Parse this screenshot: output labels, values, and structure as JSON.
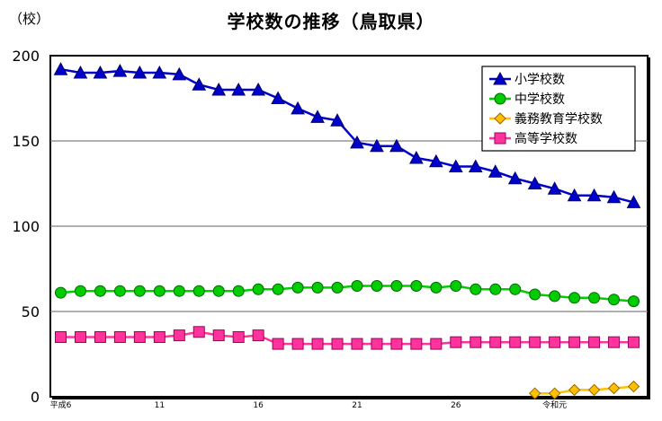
{
  "chart_data": {
    "type": "line",
    "title": "学校数の推移（鳥取県）",
    "ylabel": "（校）",
    "ylim": [
      0,
      200
    ],
    "y_ticks": [
      "0",
      "50",
      "100",
      "150",
      "200"
    ],
    "x_tick_labels": [
      {
        "index": 0,
        "label": "平成6"
      },
      {
        "index": 5,
        "label": "11"
      },
      {
        "index": 10,
        "label": "16"
      },
      {
        "index": 15,
        "label": "21"
      },
      {
        "index": 20,
        "label": "26"
      },
      {
        "index": 25,
        "label": "令和元"
      }
    ],
    "legend_position": "top-right",
    "grid": true,
    "series": [
      {
        "name": "小学校数",
        "color": "#0000CC",
        "marker": "triangle",
        "values": [
          192,
          190,
          190,
          191,
          190,
          190,
          189,
          183,
          180,
          180,
          180,
          175,
          169,
          164,
          162,
          149,
          147,
          147,
          140,
          138,
          135,
          135,
          132,
          128,
          125,
          122,
          118,
          118,
          117,
          114
        ]
      },
      {
        "name": "中学校数",
        "color": "#00CC00",
        "marker": "circle",
        "start_index": 0,
        "values": [
          61,
          62,
          62,
          62,
          62,
          62,
          62,
          62,
          62,
          62,
          63,
          63,
          64,
          64,
          64,
          65,
          65,
          65,
          65,
          64,
          65,
          63,
          63,
          63,
          60,
          59,
          58,
          58,
          57,
          56
        ]
      },
      {
        "name": "義務教育学校数",
        "color": "#FFC000",
        "marker": "diamond",
        "start_index": 24,
        "values": [
          2,
          2,
          4,
          4,
          5,
          6
        ]
      },
      {
        "name": "高等学校数",
        "color": "#FF3399",
        "marker": "square",
        "start_index": 0,
        "values": [
          35,
          35,
          35,
          35,
          35,
          35,
          36,
          38,
          36,
          35,
          36,
          31,
          31,
          31,
          31,
          31,
          31,
          31,
          31,
          31,
          32,
          32,
          32,
          32,
          32,
          32,
          32,
          32,
          32,
          32
        ]
      }
    ]
  }
}
